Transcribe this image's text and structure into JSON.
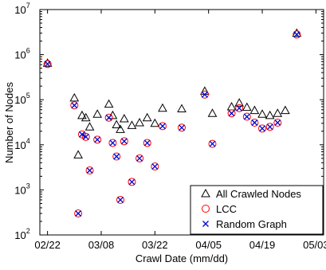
{
  "chart_data": {
    "type": "scatter",
    "xlabel": "Crawl Date (mm/dd)",
    "ylabel": "Number of Nodes",
    "x_ticks": [
      {
        "day": 0,
        "label": "02/22"
      },
      {
        "day": 14,
        "label": "03/08"
      },
      {
        "day": 28,
        "label": "03/22"
      },
      {
        "day": 42,
        "label": "04/05"
      },
      {
        "day": 56,
        "label": "04/19"
      },
      {
        "day": 70,
        "label": "05/03"
      }
    ],
    "y_scale": "log",
    "ylim": [
      100,
      10000000
    ],
    "y_ticks": [
      {
        "value": 100,
        "base": "10",
        "exp": "2"
      },
      {
        "value": 1000,
        "base": "10",
        "exp": "3"
      },
      {
        "value": 10000,
        "base": "10",
        "exp": "4"
      },
      {
        "value": 100000,
        "base": "10",
        "exp": "5"
      },
      {
        "value": 1000000,
        "base": "10",
        "exp": "6"
      },
      {
        "value": 10000000,
        "base": "10",
        "exp": "7"
      }
    ],
    "xlim_days": [
      -2,
      72
    ],
    "legend": {
      "position": "bottom-right",
      "entries": [
        "All Crawled Nodes",
        "LCC",
        "Random Graph"
      ]
    },
    "series": [
      {
        "name": "All Crawled Nodes",
        "marker": "triangle",
        "color": "#000000",
        "points": [
          [
            0,
            650000
          ],
          [
            7,
            110000
          ],
          [
            8,
            6000
          ],
          [
            9,
            45000
          ],
          [
            10,
            40000
          ],
          [
            11,
            25000
          ],
          [
            13,
            48000
          ],
          [
            16,
            80000
          ],
          [
            17,
            45000
          ],
          [
            18,
            28000
          ],
          [
            19,
            22000
          ],
          [
            20,
            38000
          ],
          [
            22,
            27000
          ],
          [
            24,
            31000
          ],
          [
            26,
            40000
          ],
          [
            28,
            30000
          ],
          [
            30,
            65000
          ],
          [
            35,
            63000
          ],
          [
            41,
            155000
          ],
          [
            43,
            50000
          ],
          [
            48,
            70000
          ],
          [
            50,
            85000
          ],
          [
            52,
            68000
          ],
          [
            54,
            58000
          ],
          [
            56,
            48000
          ],
          [
            58,
            45000
          ],
          [
            60,
            50000
          ],
          [
            62,
            58000
          ],
          [
            65,
            3000000
          ]
        ]
      },
      {
        "name": "LCC",
        "marker": "circle",
        "color": "#ff0000",
        "points": [
          [
            0,
            620000
          ],
          [
            7,
            75000
          ],
          [
            8,
            300
          ],
          [
            9,
            17000
          ],
          [
            10,
            15000
          ],
          [
            11,
            2700
          ],
          [
            13,
            13000
          ],
          [
            16,
            40000
          ],
          [
            17,
            11000
          ],
          [
            18,
            5500
          ],
          [
            19,
            600
          ],
          [
            20,
            12000
          ],
          [
            22,
            1500
          ],
          [
            24,
            5000
          ],
          [
            26,
            11000
          ],
          [
            28,
            3300
          ],
          [
            30,
            26000
          ],
          [
            35,
            24000
          ],
          [
            41,
            130000
          ],
          [
            43,
            10500
          ],
          [
            48,
            50000
          ],
          [
            50,
            65000
          ],
          [
            52,
            42000
          ],
          [
            54,
            31000
          ],
          [
            56,
            23000
          ],
          [
            58,
            25000
          ],
          [
            60,
            31000
          ],
          [
            65,
            2800000
          ]
        ]
      },
      {
        "name": "Random Graph",
        "marker": "x",
        "color": "#0000cc",
        "points": [
          [
            0,
            620000
          ],
          [
            7,
            75000
          ],
          [
            8,
            300
          ],
          [
            9,
            17000
          ],
          [
            10,
            15000
          ],
          [
            11,
            2700
          ],
          [
            13,
            13000
          ],
          [
            16,
            40000
          ],
          [
            17,
            11000
          ],
          [
            18,
            5500
          ],
          [
            19,
            600
          ],
          [
            20,
            12000
          ],
          [
            22,
            1500
          ],
          [
            24,
            5000
          ],
          [
            26,
            11000
          ],
          [
            28,
            3300
          ],
          [
            30,
            26000
          ],
          [
            35,
            24000
          ],
          [
            41,
            130000
          ],
          [
            43,
            10500
          ],
          [
            48,
            50000
          ],
          [
            50,
            65000
          ],
          [
            52,
            42000
          ],
          [
            54,
            31000
          ],
          [
            56,
            23000
          ],
          [
            58,
            25000
          ],
          [
            60,
            31000
          ],
          [
            65,
            2800000
          ]
        ]
      }
    ]
  }
}
